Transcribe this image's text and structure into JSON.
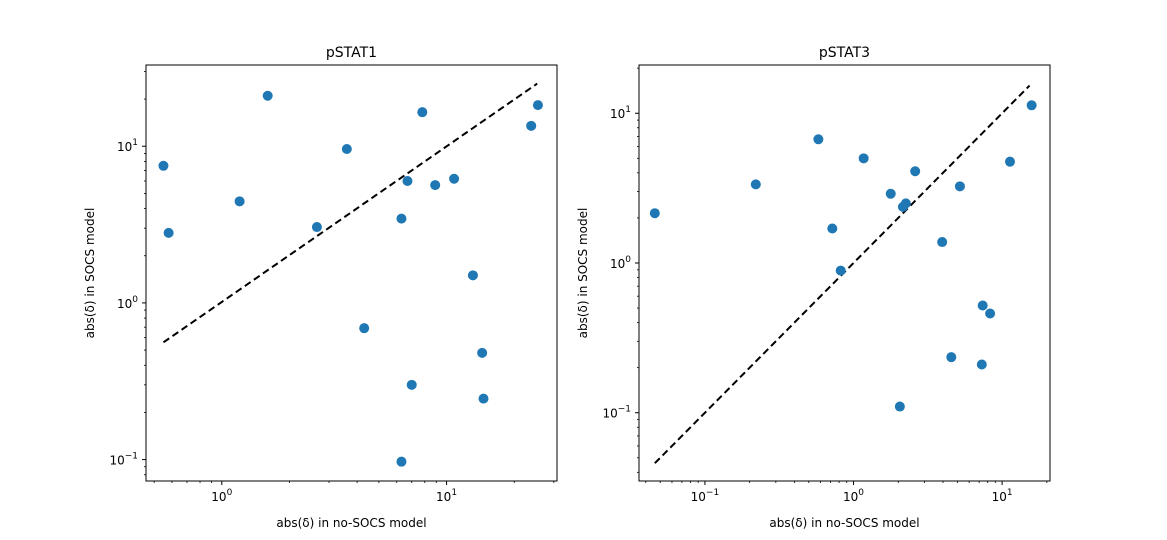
{
  "chart_data": [
    {
      "type": "scatter",
      "title": "pSTAT1",
      "xlabel": "abs(δ) in no-SOCS model",
      "ylabel": "abs(δ) in SOCS model",
      "xscale": "log",
      "yscale": "log",
      "xlim": [
        0.46,
        31
      ],
      "ylim": [
        0.073,
        33
      ],
      "xticks": [
        {
          "value": 1,
          "label": "10^0"
        },
        {
          "value": 10,
          "label": "10^1"
        }
      ],
      "yticks": [
        {
          "value": 0.1,
          "label": "10^-1"
        },
        {
          "value": 1,
          "label": "10^0"
        },
        {
          "value": 10,
          "label": "10^1"
        }
      ],
      "grid": false,
      "marker_color": "#1f77b4",
      "line_color": "#000000",
      "reference_line": {
        "style": "dashed",
        "x": [
          0.55,
          25.3
        ],
        "y": [
          0.56,
          25.1
        ]
      },
      "points": [
        {
          "x": 0.55,
          "y": 7.5
        },
        {
          "x": 0.58,
          "y": 2.8
        },
        {
          "x": 1.2,
          "y": 4.45
        },
        {
          "x": 1.6,
          "y": 21
        },
        {
          "x": 2.65,
          "y": 3.05
        },
        {
          "x": 3.6,
          "y": 9.6
        },
        {
          "x": 4.3,
          "y": 0.69
        },
        {
          "x": 6.3,
          "y": 3.45
        },
        {
          "x": 6.3,
          "y": 0.097
        },
        {
          "x": 6.7,
          "y": 6.0
        },
        {
          "x": 7.0,
          "y": 0.3
        },
        {
          "x": 7.8,
          "y": 16.5
        },
        {
          "x": 8.9,
          "y": 5.65
        },
        {
          "x": 10.8,
          "y": 6.2
        },
        {
          "x": 13.1,
          "y": 1.5
        },
        {
          "x": 14.4,
          "y": 0.48
        },
        {
          "x": 14.6,
          "y": 0.245
        },
        {
          "x": 23.8,
          "y": 13.5
        },
        {
          "x": 25.5,
          "y": 18.3
        }
      ]
    },
    {
      "type": "scatter",
      "title": "pSTAT3",
      "xlabel": "abs(δ) in no-SOCS model",
      "ylabel": "abs(δ) in SOCS model",
      "xscale": "log",
      "yscale": "log",
      "xlim": [
        0.036,
        21
      ],
      "ylim": [
        0.035,
        21
      ],
      "xticks": [
        {
          "value": 0.1,
          "label": "10^-1"
        },
        {
          "value": 1,
          "label": "10^0"
        },
        {
          "value": 10,
          "label": "10^1"
        }
      ],
      "yticks": [
        {
          "value": 0.1,
          "label": "10^-1"
        },
        {
          "value": 1,
          "label": "10^0"
        },
        {
          "value": 10,
          "label": "10^1"
        }
      ],
      "grid": false,
      "marker_color": "#1f77b4",
      "line_color": "#000000",
      "reference_line": {
        "style": "dashed",
        "x": [
          0.046,
          15.3
        ],
        "y": [
          0.046,
          15.3
        ]
      },
      "points": [
        {
          "x": 0.046,
          "y": 2.15
        },
        {
          "x": 0.22,
          "y": 3.35
        },
        {
          "x": 0.58,
          "y": 6.7
        },
        {
          "x": 0.72,
          "y": 1.7
        },
        {
          "x": 0.82,
          "y": 0.89
        },
        {
          "x": 1.17,
          "y": 5.0
        },
        {
          "x": 1.78,
          "y": 2.9
        },
        {
          "x": 2.05,
          "y": 0.11
        },
        {
          "x": 2.15,
          "y": 2.37
        },
        {
          "x": 2.25,
          "y": 2.5
        },
        {
          "x": 2.6,
          "y": 4.1
        },
        {
          "x": 3.95,
          "y": 1.38
        },
        {
          "x": 4.55,
          "y": 0.235
        },
        {
          "x": 5.2,
          "y": 3.25
        },
        {
          "x": 7.3,
          "y": 0.21
        },
        {
          "x": 7.4,
          "y": 0.52
        },
        {
          "x": 8.3,
          "y": 0.46
        },
        {
          "x": 11.3,
          "y": 4.75
        },
        {
          "x": 15.8,
          "y": 11.3
        }
      ]
    }
  ]
}
